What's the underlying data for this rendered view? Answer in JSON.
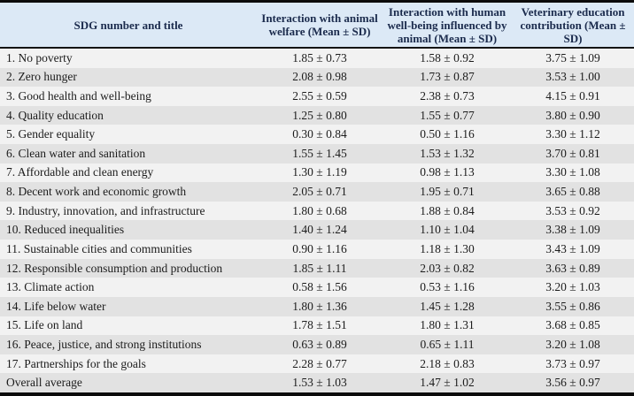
{
  "colors": {
    "header_bg": "#dce9f6",
    "header_text": "#1b2b4d",
    "row_light": "#f2f2f2",
    "row_dark": "#e2e2e2",
    "border": "#0b0b0b"
  },
  "table": {
    "columns": [
      "SDG number and title",
      "Interaction with animal welfare (Mean ± SD)",
      "Interaction with human well-being influenced by animal (Mean ± SD)",
      "Veterinary education contribution (Mean ± SD)"
    ],
    "rows": [
      [
        "1. No poverty",
        "1.85 ± 0.73",
        "1.58 ± 0.92",
        "3.75 ± 1.09"
      ],
      [
        "2. Zero hunger",
        "2.08 ± 0.98",
        "1.73 ± 0.87",
        "3.53 ± 1.00"
      ],
      [
        "3. Good health and well-being",
        "2.55 ± 0.59",
        "2.38 ± 0.73",
        "4.15 ± 0.91"
      ],
      [
        "4. Quality education",
        "1.25 ± 0.80",
        "1.55 ± 0.77",
        "3.80 ± 0.90"
      ],
      [
        "5. Gender equality",
        "0.30 ± 0.84",
        "0.50 ± 1.16",
        "3.30 ± 1.12"
      ],
      [
        "6. Clean water and sanitation",
        "1.55 ± 1.45",
        "1.53 ± 1.32",
        "3.70 ± 0.81"
      ],
      [
        "7. Affordable and clean energy",
        "1.30 ± 1.19",
        "0.98 ± 1.13",
        "3.30 ± 1.08"
      ],
      [
        "8. Decent work and economic growth",
        "2.05 ± 0.71",
        "1.95 ± 0.71",
        "3.65 ± 0.88"
      ],
      [
        "9. Industry, innovation, and infrastructure",
        "1.80 ± 0.68",
        "1.88 ± 0.84",
        "3.53 ± 0.92"
      ],
      [
        "10. Reduced inequalities",
        "1.40 ± 1.24",
        "1.10 ± 1.04",
        "3.38 ± 1.09"
      ],
      [
        "11. Sustainable cities and communities",
        "0.90 ± 1.16",
        "1.18 ± 1.30",
        "3.43 ± 1.09"
      ],
      [
        "12. Responsible consumption and production",
        "1.85 ± 1.11",
        "2.03 ± 0.82",
        "3.63 ± 0.89"
      ],
      [
        "13. Climate action",
        "0.58 ± 1.56",
        "0.53 ± 1.16",
        "3.20 ± 1.03"
      ],
      [
        "14. Life below water",
        "1.80 ± 1.36",
        "1.45 ± 1.28",
        "3.55 ± 0.86"
      ],
      [
        "15. Life on land",
        "1.78 ± 1.51",
        "1.80 ± 1.31",
        "3.68 ± 0.85"
      ],
      [
        "16. Peace, justice, and strong institutions",
        "0.63 ± 0.89",
        "0.65 ± 1.11",
        "3.20 ± 1.08"
      ],
      [
        "17. Partnerships for the goals",
        "2.28 ± 0.77",
        "2.18 ± 0.83",
        "3.73 ± 0.97"
      ],
      [
        "Overall average",
        "1.53 ± 1.03",
        "1.47 ± 1.02",
        "3.56 ± 0.97"
      ]
    ]
  }
}
